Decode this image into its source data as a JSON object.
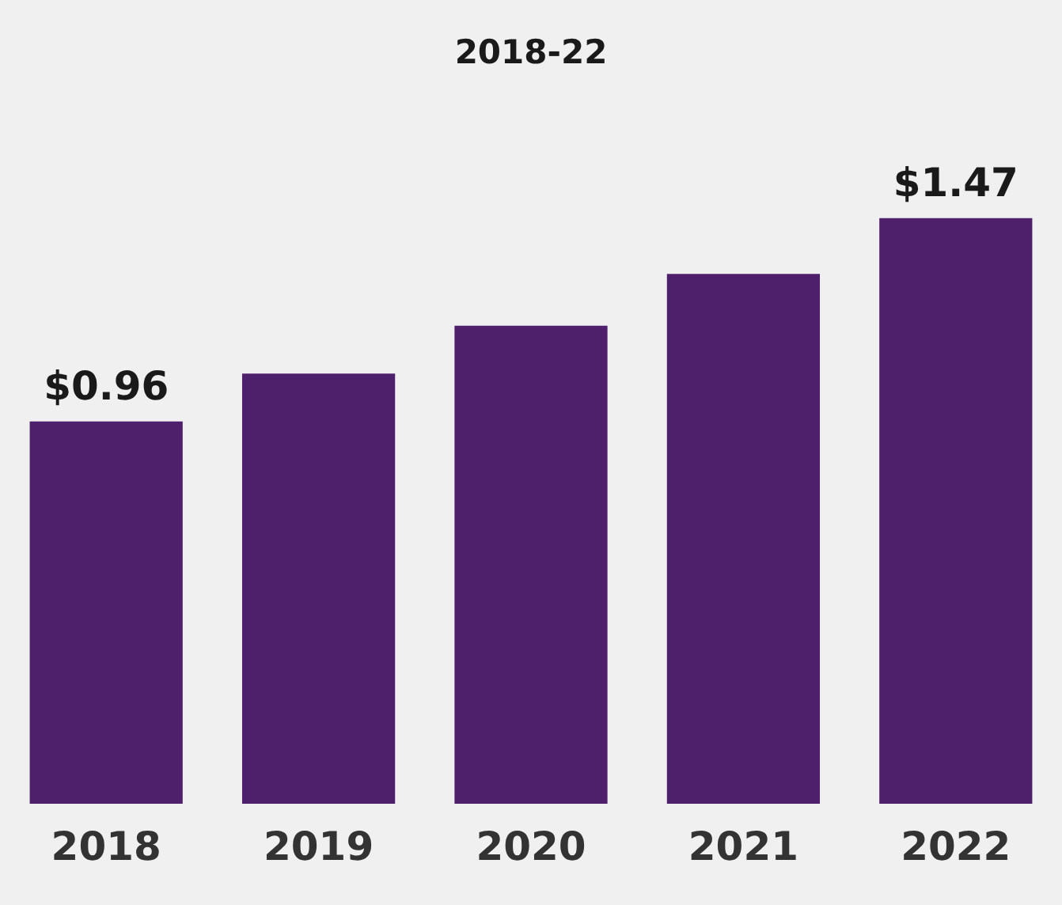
{
  "chart_data": {
    "type": "bar",
    "title": "2018-22",
    "categories": [
      "2018",
      "2019",
      "2020",
      "2021",
      "2022"
    ],
    "values": [
      0.96,
      1.08,
      1.2,
      1.33,
      1.47
    ],
    "value_labels": [
      "$0.96",
      null,
      null,
      null,
      "$1.47"
    ],
    "color": "#4e1f6b",
    "tick_labels": "x",
    "grid": false,
    "legend": false
  }
}
